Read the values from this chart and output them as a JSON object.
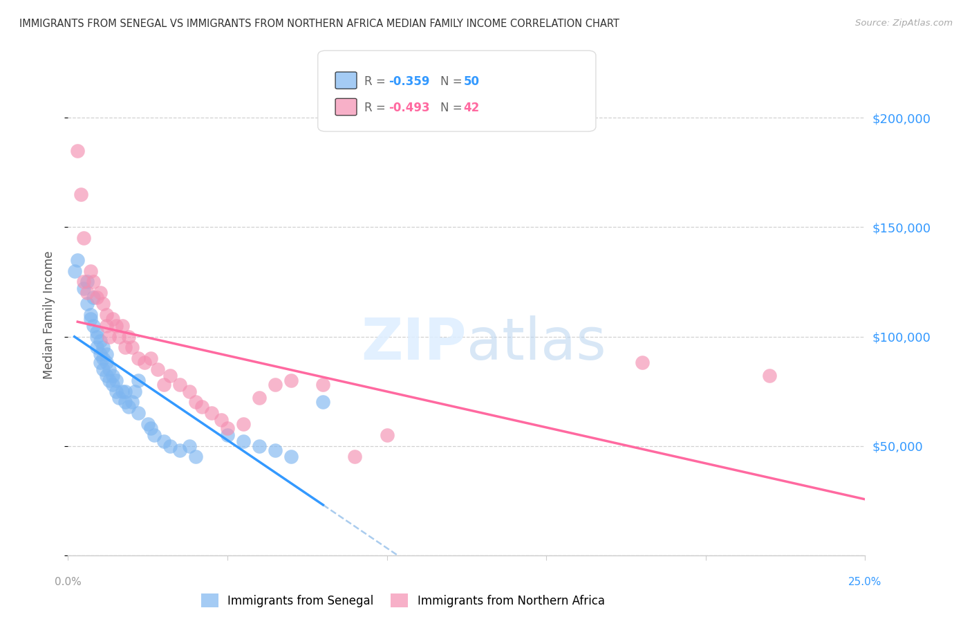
{
  "title": "IMMIGRANTS FROM SENEGAL VS IMMIGRANTS FROM NORTHERN AFRICA MEDIAN FAMILY INCOME CORRELATION CHART",
  "source": "Source: ZipAtlas.com",
  "ylabel": "Median Family Income",
  "yticks": [
    0,
    50000,
    100000,
    150000,
    200000
  ],
  "ytick_labels": [
    "",
    "$50,000",
    "$100,000",
    "$150,000",
    "$200,000"
  ],
  "xlim": [
    0.0,
    0.25
  ],
  "ylim": [
    0,
    220000
  ],
  "watermark_zip": "ZIP",
  "watermark_atlas": "atlas",
  "series1_color": "#7EB6F0",
  "series2_color": "#F48FB1",
  "trendline1_color": "#3399FF",
  "trendline2_color": "#FF69A0",
  "dashed_color": "#AACCEE",
  "series1_name": "Immigrants from Senegal",
  "series2_name": "Immigrants from Northern Africa",
  "senegal_x": [
    0.002,
    0.003,
    0.005,
    0.006,
    0.006,
    0.007,
    0.007,
    0.008,
    0.008,
    0.009,
    0.009,
    0.009,
    0.01,
    0.01,
    0.01,
    0.011,
    0.011,
    0.011,
    0.012,
    0.012,
    0.012,
    0.013,
    0.013,
    0.014,
    0.014,
    0.015,
    0.015,
    0.016,
    0.017,
    0.018,
    0.018,
    0.019,
    0.02,
    0.021,
    0.022,
    0.022,
    0.025,
    0.026,
    0.027,
    0.03,
    0.032,
    0.035,
    0.038,
    0.04,
    0.05,
    0.055,
    0.06,
    0.065,
    0.07,
    0.08
  ],
  "senegal_y": [
    130000,
    135000,
    122000,
    115000,
    125000,
    110000,
    108000,
    105000,
    118000,
    100000,
    95000,
    102000,
    98000,
    92000,
    88000,
    85000,
    90000,
    95000,
    82000,
    88000,
    92000,
    80000,
    85000,
    78000,
    82000,
    75000,
    80000,
    72000,
    75000,
    70000,
    75000,
    68000,
    70000,
    75000,
    80000,
    65000,
    60000,
    58000,
    55000,
    52000,
    50000,
    48000,
    50000,
    45000,
    55000,
    52000,
    50000,
    48000,
    45000,
    70000
  ],
  "northern_x": [
    0.003,
    0.004,
    0.005,
    0.005,
    0.006,
    0.007,
    0.008,
    0.009,
    0.01,
    0.011,
    0.012,
    0.012,
    0.013,
    0.014,
    0.015,
    0.016,
    0.017,
    0.018,
    0.019,
    0.02,
    0.022,
    0.024,
    0.026,
    0.028,
    0.03,
    0.032,
    0.035,
    0.038,
    0.04,
    0.042,
    0.045,
    0.048,
    0.05,
    0.055,
    0.06,
    0.065,
    0.07,
    0.08,
    0.09,
    0.1,
    0.18,
    0.22
  ],
  "northern_y": [
    185000,
    165000,
    125000,
    145000,
    120000,
    130000,
    125000,
    118000,
    120000,
    115000,
    110000,
    105000,
    100000,
    108000,
    105000,
    100000,
    105000,
    95000,
    100000,
    95000,
    90000,
    88000,
    90000,
    85000,
    78000,
    82000,
    78000,
    75000,
    70000,
    68000,
    65000,
    62000,
    58000,
    60000,
    72000,
    78000,
    80000,
    78000,
    45000,
    55000,
    88000,
    82000
  ]
}
